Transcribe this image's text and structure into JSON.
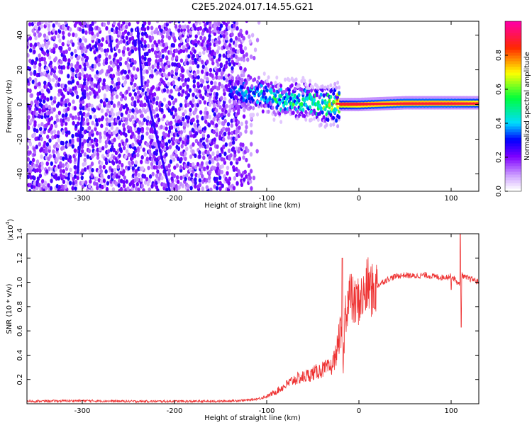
{
  "title": "C2E5.2024.017.14.55.G21",
  "chart_data": [
    {
      "type": "heatmap",
      "xlabel": "Height of straight line (km)",
      "ylabel": "Frequency (Hz)",
      "xlim": [
        -360,
        130
      ],
      "ylim": [
        -50,
        48
      ],
      "xticks": [
        -300,
        -200,
        -100,
        0,
        100
      ],
      "yticks": [
        -40,
        -20,
        0,
        20,
        40
      ],
      "colorbar": {
        "label": "Normalized spectral amplitude",
        "range": [
          0,
          1
        ],
        "ticks": [
          "0.0",
          "0.2",
          "0.4",
          "0.6",
          "0.8"
        ],
        "colors": [
          "#ffffff",
          "#cc99ff",
          "#7f00ff",
          "#0000ff",
          "#00ffff",
          "#00ff00",
          "#ffff00",
          "#ff0000",
          "#ff00aa"
        ]
      },
      "noise_region": {
        "x_range": [
          -360,
          -120
        ],
        "amplitude_level": "0.1-0.25"
      },
      "signal_track": {
        "x": [
          -140,
          -120,
          -100,
          -80,
          -60,
          -40,
          -20,
          0,
          50,
          100,
          130
        ],
        "center_freq": [
          8,
          7,
          5,
          2,
          3,
          0,
          0,
          0,
          1,
          1,
          1
        ],
        "peak_amplitude": [
          0.35,
          0.45,
          0.5,
          0.55,
          0.55,
          0.65,
          0.85,
          0.9,
          0.95,
          0.95,
          0.9
        ]
      }
    },
    {
      "type": "line",
      "xlabel": "Height of straight line (km)",
      "ylabel": "SNR (10 * v/v)",
      "scale_label": "(x10",
      "scale_exp": "4",
      "xlim": [
        -360,
        130
      ],
      "ylim": [
        0,
        1.4
      ],
      "xticks": [
        -300,
        -200,
        -100,
        0,
        100
      ],
      "yticks": [
        "0.2",
        "0.4",
        "0.6",
        "0.8",
        "1.0",
        "1.2",
        "1.4"
      ],
      "color": "#ee3333",
      "series": [
        {
          "x": [
            -360,
            -300,
            -250,
            -200,
            -150,
            -120,
            -110,
            -100,
            -90,
            -80,
            -70,
            -60,
            -50,
            -40,
            -30,
            -25,
            -20,
            -17,
            -15,
            -10,
            -5,
            0,
            5,
            10,
            15,
            20,
            25,
            30,
            40,
            50,
            60,
            70,
            80,
            90,
            100,
            105,
            108,
            110,
            112,
            115,
            120,
            125,
            130
          ],
          "y": [
            0.02,
            0.025,
            0.02,
            0.02,
            0.02,
            0.03,
            0.04,
            0.06,
            0.1,
            0.15,
            0.2,
            0.22,
            0.25,
            0.28,
            0.3,
            0.4,
            0.6,
            0.3,
            0.75,
            0.9,
            0.82,
            0.85,
            0.88,
            0.98,
            0.92,
            0.97,
            1.0,
            1.02,
            1.05,
            1.06,
            1.05,
            1.06,
            1.05,
            1.04,
            1.05,
            1.02,
            0.98,
            1.0,
            1.06,
            1.04,
            1.03,
            1.02,
            1.0
          ]
        }
      ],
      "spikes": [
        {
          "x": -18,
          "y": 1.2
        },
        {
          "x": 110,
          "y": 1.4
        },
        {
          "x": 111,
          "y": 0.63
        },
        {
          "x": 100,
          "y": 0.94
        }
      ]
    }
  ]
}
